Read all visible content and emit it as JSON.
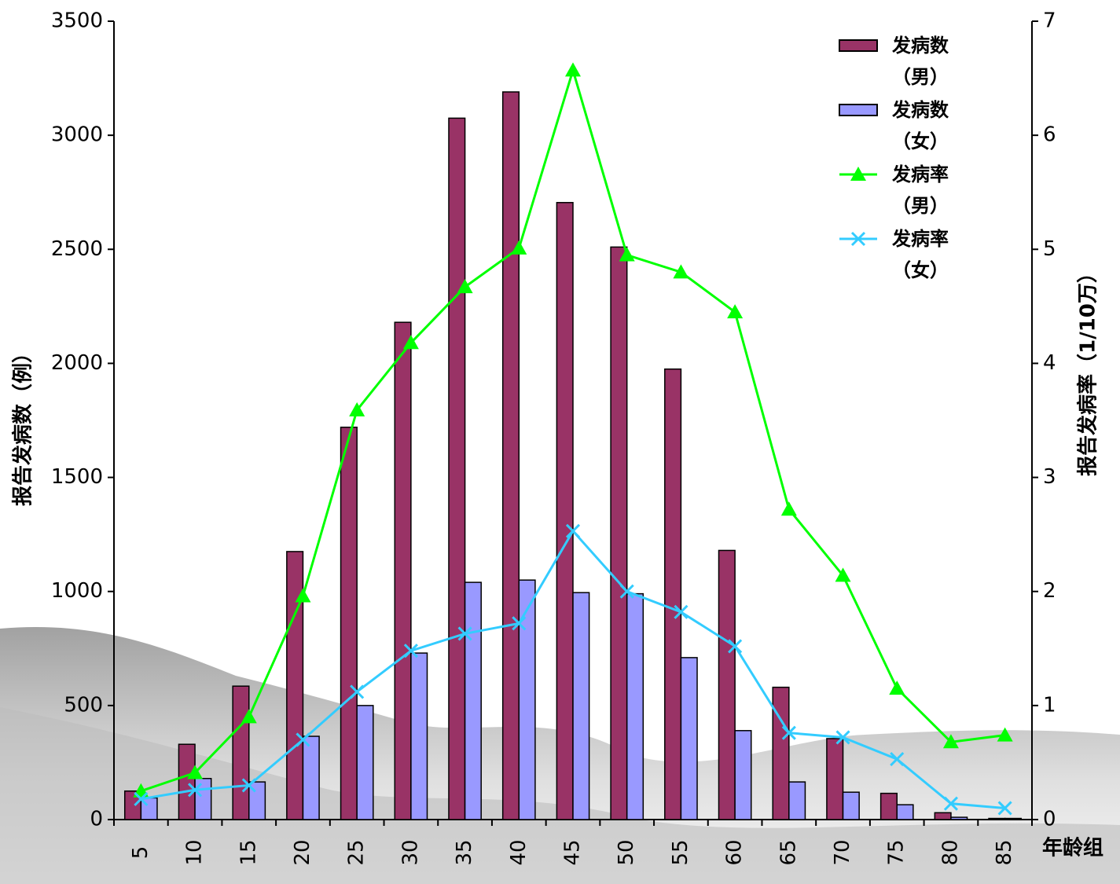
{
  "chart_data": {
    "type": "bar-line",
    "categories": [
      "5",
      "10",
      "15",
      "20",
      "25",
      "30",
      "35",
      "40",
      "45",
      "50",
      "55",
      "60",
      "65",
      "70",
      "75",
      "80",
      "85"
    ],
    "x_label": "年龄组",
    "y_label": "报告发病数（例）",
    "y2_label": "报告发病率（1/10万）",
    "ylim": [
      0,
      3500
    ],
    "yticks": [
      0,
      500,
      1000,
      1500,
      2000,
      2500,
      3000,
      3500
    ],
    "y2lim": [
      0,
      7
    ],
    "y2ticks": [
      0,
      1,
      2,
      3,
      4,
      5,
      6,
      7
    ],
    "series": [
      {
        "name": "发病数（男）",
        "type": "bar",
        "color": "#993366",
        "values": [
          125,
          330,
          585,
          1175,
          1720,
          2180,
          3075,
          3190,
          2705,
          2510,
          1975,
          1180,
          580,
          355,
          115,
          30,
          5
        ]
      },
      {
        "name": "发病数（女）",
        "type": "bar",
        "color": "#9999ff",
        "values": [
          95,
          180,
          165,
          365,
          500,
          730,
          1040,
          1050,
          995,
          990,
          710,
          390,
          165,
          120,
          65,
          10,
          5
        ]
      },
      {
        "name": "发病率（男）",
        "type": "line",
        "marker": "triangle",
        "axis": "y2",
        "color": "#00ff00",
        "values": [
          0.25,
          0.41,
          0.9,
          1.96,
          3.59,
          4.18,
          4.67,
          5.01,
          6.57,
          4.95,
          4.8,
          4.45,
          2.72,
          2.14,
          1.15,
          0.68,
          0.74
        ]
      },
      {
        "name": "发病率（女）",
        "type": "line",
        "marker": "x",
        "axis": "y2",
        "color": "#33ccff",
        "values": [
          0.18,
          0.26,
          0.3,
          0.7,
          1.12,
          1.48,
          1.63,
          1.72,
          2.53,
          2.0,
          1.82,
          1.52,
          0.76,
          0.72,
          0.53,
          0.14,
          0.1
        ]
      }
    ]
  }
}
